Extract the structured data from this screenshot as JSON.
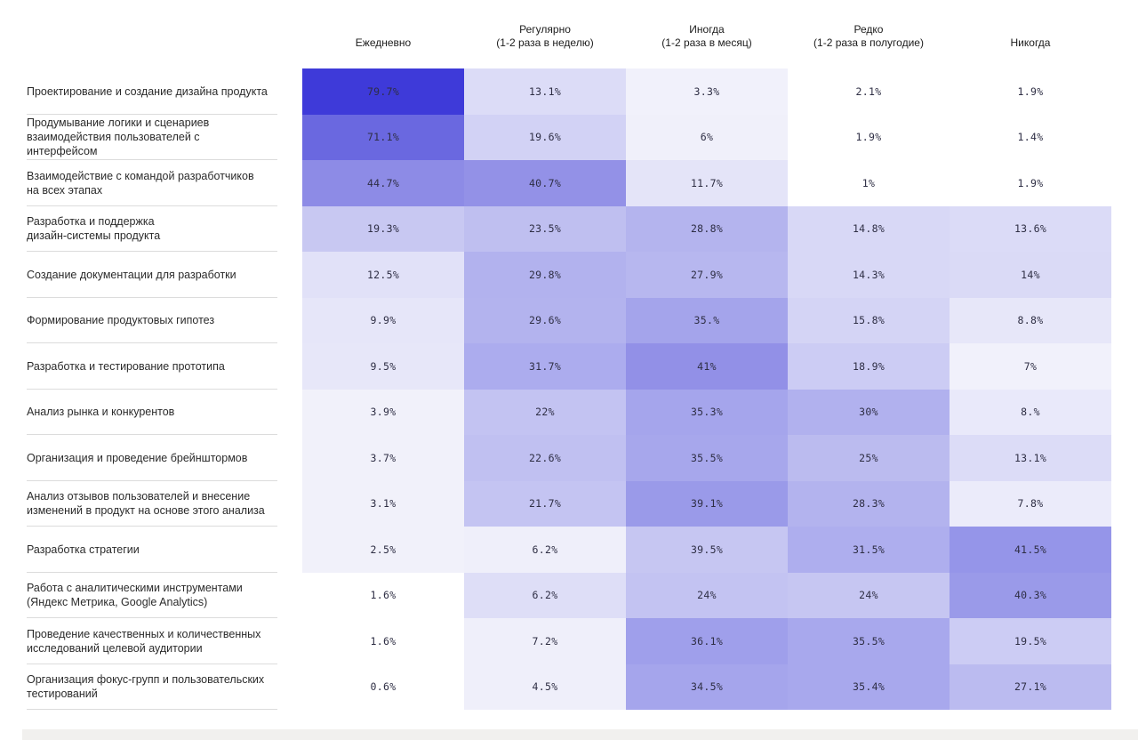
{
  "chart_data": {
    "type": "heatmap",
    "title": "",
    "legend_position": "none",
    "palette": {
      "min_color": "#ffffff",
      "max_color": "#3e3ad9"
    },
    "columns": [
      {
        "label": "Ежедневно",
        "sub": ""
      },
      {
        "label": "Регулярно",
        "sub": "(1-2 раза в неделю)"
      },
      {
        "label": "Иногда",
        "sub": "(1-2 раза в месяц)"
      },
      {
        "label": "Редко",
        "sub": "(1-2 раза в полугодие)"
      },
      {
        "label": "Никогда",
        "sub": ""
      }
    ],
    "rows": [
      {
        "label": "Проектирование и создание дизайна продукта",
        "values": [
          "79.7%",
          "13.1%",
          "3.3%",
          "2.1%",
          "1.9%"
        ],
        "colors": [
          "#3e3ad9",
          "#dcdcf7",
          "#f1f1fb",
          "#ffffff",
          "#ffffff"
        ]
      },
      {
        "label": "Продумывание логики и сценариев\nвзаимодействия пользователей с интерфейсом",
        "values": [
          "71.1%",
          "19.6%",
          "6%",
          "1.9%",
          "1.4%"
        ],
        "colors": [
          "#6a68e0",
          "#d2d2f5",
          "#f0f0fa",
          "#ffffff",
          "#ffffff"
        ]
      },
      {
        "label": "Взаимодействие с командой разработчиков\nна всех этапах",
        "values": [
          "44.7%",
          "40.7%",
          "11.7%",
          "1%",
          "1.9%"
        ],
        "colors": [
          "#8d8be6",
          "#9391e7",
          "#e4e4f8",
          "#ffffff",
          "#ffffff"
        ]
      },
      {
        "label": "Разработка и поддержка\nдизайн-системы продукта",
        "values": [
          "19.3%",
          "23.5%",
          "28.8%",
          "14.8%",
          "13.6%"
        ],
        "colors": [
          "#c8c8f2",
          "#bfbff0",
          "#b4b4ee",
          "#d8d8f6",
          "#dbdbf7"
        ]
      },
      {
        "label": "Создание документации для разработки",
        "values": [
          "12.5%",
          "29.8%",
          "27.9%",
          "14.3%",
          "14%"
        ],
        "colors": [
          "#e1e1f8",
          "#b2b2ee",
          "#b7b7ef",
          "#d8d8f6",
          "#dadaf6"
        ]
      },
      {
        "label": "Формирование продуктовых гипотез",
        "values": [
          "9.9%",
          "29.6%",
          "35.%",
          "15.8%",
          "8.8%"
        ],
        "colors": [
          "#e6e6f9",
          "#b3b3ee",
          "#a4a4eb",
          "#d4d4f5",
          "#e7e7f9"
        ]
      },
      {
        "label": "Разработка и тестирование прототипа",
        "values": [
          "9.5%",
          "31.7%",
          "41%",
          "18.9%",
          "7%"
        ],
        "colors": [
          "#e7e7f9",
          "#acacee",
          "#9290e7",
          "#ccccf4",
          "#f1f1fb"
        ]
      },
      {
        "label": "Анализ рынка и конкурентов",
        "values": [
          "3.9%",
          "22%",
          "35.3%",
          "30%",
          "8.%"
        ],
        "colors": [
          "#f1f1fa",
          "#c3c3f2",
          "#a5a5ec",
          "#b1b1ee",
          "#e9e9fa"
        ]
      },
      {
        "label": "Организация и проведение брейнштормов",
        "values": [
          "3.7%",
          "22.6%",
          "35.5%",
          "25%",
          "13.1%"
        ],
        "colors": [
          "#f1f1fa",
          "#c0c0f1",
          "#a7a7ec",
          "#bbbbef",
          "#dcdcf7"
        ]
      },
      {
        "label": "Анализ отзывов пользователей и внесение\nизменений в продукт на основе этого анализа",
        "values": [
          "3.1%",
          "21.7%",
          "39.1%",
          "28.3%",
          "7.8%"
        ],
        "colors": [
          "#f1f1fa",
          "#c4c4f2",
          "#9a9ae9",
          "#b3b3ee",
          "#ebebfa"
        ]
      },
      {
        "label": "Разработка стратегии",
        "values": [
          "2.5%",
          "6.2%",
          "39.5%",
          "31.5%",
          "41.5%"
        ],
        "colors": [
          "#f1f1fa",
          "#efeffa",
          "#c6c6f2",
          "#aeaeee",
          "#9595e9"
        ]
      },
      {
        "label": "Работа с аналитическими инструментами\n(Яндекс Метрика, Google Analytics)",
        "values": [
          "1.6%",
          "6.2%",
          "24%",
          "24%",
          "40.3%"
        ],
        "colors": [
          "#ffffff",
          "#dedef7",
          "#c3c3f2",
          "#c6c6f2",
          "#9a9ae9"
        ]
      },
      {
        "label": "Проведение качественных и количественных\nисследований целевой аудитории",
        "values": [
          "1.6%",
          "7.2%",
          "36.1%",
          "35.5%",
          "19.5%"
        ],
        "colors": [
          "#ffffff",
          "#efeffa",
          "#9f9feb",
          "#a8a8ed",
          "#ccccf4"
        ]
      },
      {
        "label": "Организация фокус-групп и пользовательских\nтестирований",
        "values": [
          "0.6%",
          "4.5%",
          "34.5%",
          "35.4%",
          "27.1%"
        ],
        "colors": [
          "#ffffff",
          "#efeffa",
          "#a5a5ec",
          "#a8a8ed",
          "#bbbbf0"
        ]
      }
    ]
  }
}
